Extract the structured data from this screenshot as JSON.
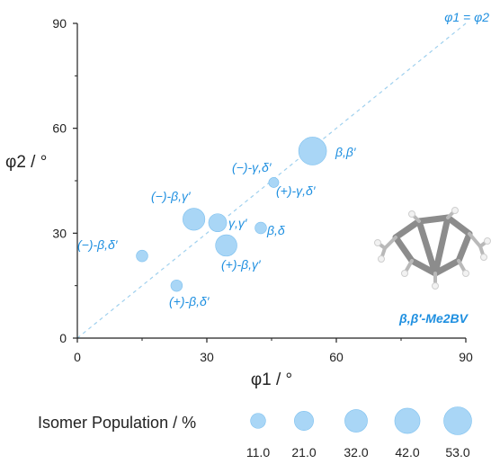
{
  "colors": {
    "bubble_fill": "#a9d6f6",
    "bubble_stroke": "#7dc0ef",
    "label_blue": "#1e8fe0",
    "diagonal": "#9fd0ee",
    "axis": "#222222"
  },
  "chart_data": {
    "type": "scatter",
    "xlabel": "φ1 / °",
    "ylabel": "φ2 / °",
    "xlim": [
      0,
      90
    ],
    "ylim": [
      0,
      90
    ],
    "xticks": [
      0,
      30,
      60,
      90
    ],
    "yticks": [
      0,
      30,
      60,
      90
    ],
    "diagonal_label": "φ1 = φ2",
    "molecule_label": "β,β′-Me2BV",
    "points": [
      {
        "label": "β,β′",
        "x": 54.5,
        "y": 53.5,
        "population": 53.0
      },
      {
        "label": "(−)-γ,δ′",
        "x": 45.5,
        "y": 44.5,
        "population": 3.0
      },
      {
        "label": "(+)-γ,δ′",
        "x": 45.5,
        "y": 44.5,
        "population": 3.0
      },
      {
        "label": "(−)-β,γ′",
        "x": 27.0,
        "y": 34.0,
        "population": 30.0
      },
      {
        "label": "γ,γ′",
        "x": 32.5,
        "y": 33.0,
        "population": 18.0
      },
      {
        "label": "β,δ",
        "x": 42.5,
        "y": 31.5,
        "population": 5.0
      },
      {
        "label": "(+)-β,γ′",
        "x": 34.5,
        "y": 26.5,
        "population": 28.0
      },
      {
        "label": "(−)-β,δ′",
        "x": 15.0,
        "y": 23.5,
        "population": 5.0
      },
      {
        "label": "(+)-β,δ′",
        "x": 23.0,
        "y": 15.0,
        "population": 5.0
      }
    ],
    "legend": {
      "title": "Isomer Population / %",
      "values": [
        11.0,
        21.0,
        32.0,
        42.0,
        53.0
      ],
      "value_labels": [
        "11.0",
        "21.0",
        "32.0",
        "42.0",
        "53.0"
      ]
    }
  }
}
